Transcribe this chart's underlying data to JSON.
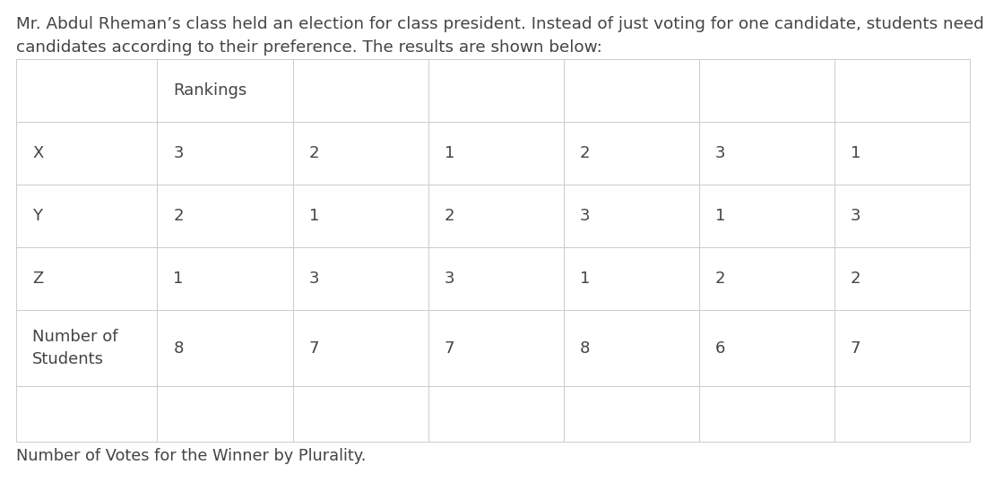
{
  "title_text": "Mr. Abdul Rheman’s class held an election for class president. Instead of just voting for one candidate, students need to rank all the\ncandidates according to their preference. The results are shown below:",
  "footer_text": "Number of Votes for the Winner by Plurality.",
  "table": {
    "header_label": "Rankings",
    "rows": [
      {
        "label": "X",
        "values": [
          "3",
          "2",
          "1",
          "2",
          "3",
          "1"
        ]
      },
      {
        "label": "Y",
        "values": [
          "2",
          "1",
          "2",
          "3",
          "1",
          "3"
        ]
      },
      {
        "label": "Z",
        "values": [
          "1",
          "3",
          "3",
          "1",
          "2",
          "2"
        ]
      },
      {
        "label": "Number of\nStudents",
        "values": [
          "8",
          "7",
          "7",
          "8",
          "6",
          "7"
        ]
      },
      {
        "label": "",
        "values": [
          "",
          "",
          "",
          "",
          "",
          ""
        ]
      }
    ]
  },
  "bg_color": "#ffffff",
  "text_color": "#444444",
  "border_color": "#cccccc",
  "font_size_title": 13.2,
  "font_size_table": 13.0,
  "font_size_footer": 12.8
}
